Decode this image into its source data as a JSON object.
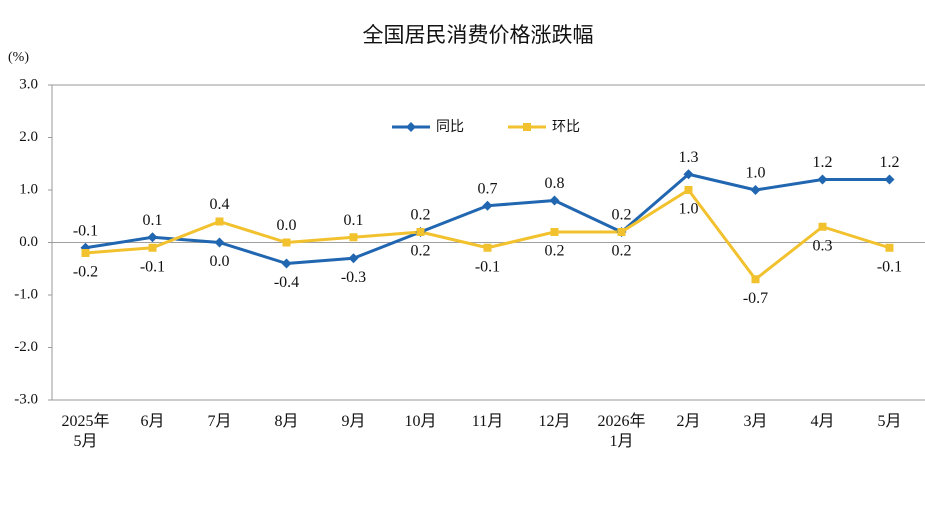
{
  "chart_data": {
    "type": "line",
    "title": "全国居民消费价格涨跌幅",
    "y_label": "(%)",
    "categories": [
      "2025年\n5月",
      "6月",
      "7月",
      "8月",
      "9月",
      "10月",
      "11月",
      "12月",
      "2026年\n1月",
      "2月",
      "3月",
      "4月",
      "5月"
    ],
    "series": [
      {
        "name": "同比",
        "color": "#2166b0",
        "marker": "diamond",
        "values": [
          -0.1,
          0.1,
          0,
          -0.4,
          -0.3,
          0.2,
          0.7,
          0.8,
          0.2,
          1.3,
          1,
          1.2,
          1.2
        ],
        "value_labels": [
          "-0.1",
          "0.1",
          "0.0",
          "-0.4",
          "-0.3",
          "0.2",
          "0.7",
          "0.8",
          "0.2",
          "1.3",
          "1.0",
          "1.2",
          "1.2"
        ]
      },
      {
        "name": "环比",
        "color": "#f2c12e",
        "marker": "square",
        "values": [
          -0.2,
          -0.1,
          0.4,
          0,
          0.1,
          0.2,
          -0.1,
          0.2,
          0.2,
          1,
          -0.7,
          0.3,
          -0.1
        ],
        "value_labels": [
          "-0.2",
          "-0.1",
          "0.4",
          "0.0",
          "0.1",
          "0.2",
          "-0.1",
          "0.2",
          "0.2",
          "1.0",
          "-0.7",
          "0.3",
          "-0.1"
        ]
      }
    ],
    "ylim": [
      -3,
      3
    ],
    "yticks": [
      {
        "value": -3,
        "label": "-3.0"
      },
      {
        "value": -2,
        "label": "-2.0"
      },
      {
        "value": -1,
        "label": "-1.0"
      },
      {
        "value": 0,
        "label": "0.0"
      },
      {
        "value": 1,
        "label": "1.0"
      },
      {
        "value": 2,
        "label": "2.0"
      },
      {
        "value": 3,
        "label": "3.0"
      }
    ],
    "grid": false,
    "legend": "top"
  }
}
